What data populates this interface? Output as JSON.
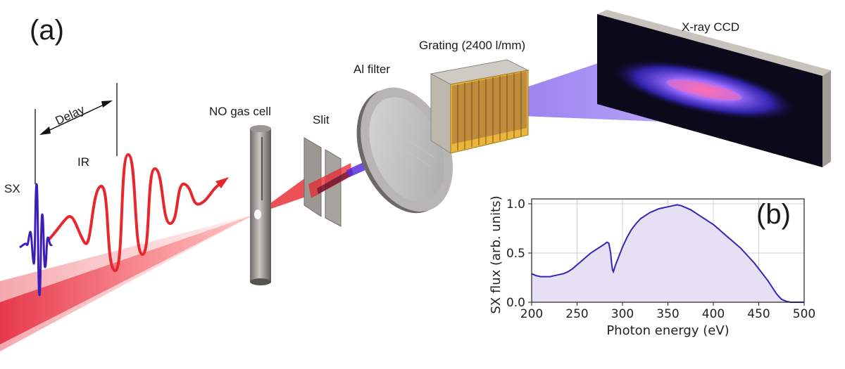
{
  "panel_a": {
    "label": "(a)",
    "labels": {
      "delay": "Delay",
      "ir": "IR",
      "sx": "SX",
      "gas_cell": "NO gas cell",
      "slit": "Slit",
      "al_filter": "Al filter",
      "grating": "Grating (2400 l/mm)",
      "ccd": "X-ray CCD"
    },
    "colors": {
      "ir_beam": "#e8262e",
      "sx_pulse": "#3b1fb8",
      "xray_beam": "#7a4dff",
      "grating_gold": "#e9b53a"
    }
  },
  "panel_b": {
    "label": "(b)",
    "chart_data": {
      "type": "area",
      "title": "",
      "xlabel": "Photon energy (eV)",
      "ylabel": "SX flux (arb. units)",
      "xlim": [
        200,
        500
      ],
      "ylim": [
        0,
        1.05
      ],
      "xticks": [
        200,
        250,
        300,
        350,
        400,
        450,
        500
      ],
      "yticks": [
        0.0,
        0.5,
        1.0
      ],
      "grid": true,
      "line_color": "#3a22b8",
      "fill_color": "#e6e0f5",
      "x": [
        200,
        205,
        210,
        215,
        220,
        225,
        230,
        235,
        240,
        245,
        250,
        255,
        260,
        265,
        270,
        275,
        280,
        283,
        285,
        287,
        288,
        289,
        290,
        292,
        295,
        300,
        305,
        310,
        315,
        320,
        325,
        330,
        335,
        340,
        345,
        350,
        355,
        360,
        365,
        370,
        375,
        380,
        385,
        390,
        395,
        400,
        405,
        410,
        415,
        420,
        425,
        430,
        435,
        440,
        445,
        450,
        455,
        460,
        465,
        470,
        475,
        480,
        485,
        490,
        495,
        500
      ],
      "y": [
        0.29,
        0.27,
        0.26,
        0.26,
        0.26,
        0.27,
        0.28,
        0.29,
        0.31,
        0.34,
        0.38,
        0.42,
        0.46,
        0.5,
        0.53,
        0.56,
        0.59,
        0.61,
        0.6,
        0.5,
        0.4,
        0.33,
        0.31,
        0.37,
        0.44,
        0.56,
        0.66,
        0.74,
        0.8,
        0.85,
        0.88,
        0.91,
        0.93,
        0.95,
        0.96,
        0.97,
        0.98,
        0.99,
        0.98,
        0.96,
        0.94,
        0.91,
        0.88,
        0.85,
        0.82,
        0.79,
        0.75,
        0.71,
        0.67,
        0.63,
        0.59,
        0.55,
        0.5,
        0.45,
        0.4,
        0.34,
        0.28,
        0.22,
        0.15,
        0.08,
        0.03,
        0.01,
        0.0,
        0.0,
        0.0,
        0.0
      ]
    }
  }
}
